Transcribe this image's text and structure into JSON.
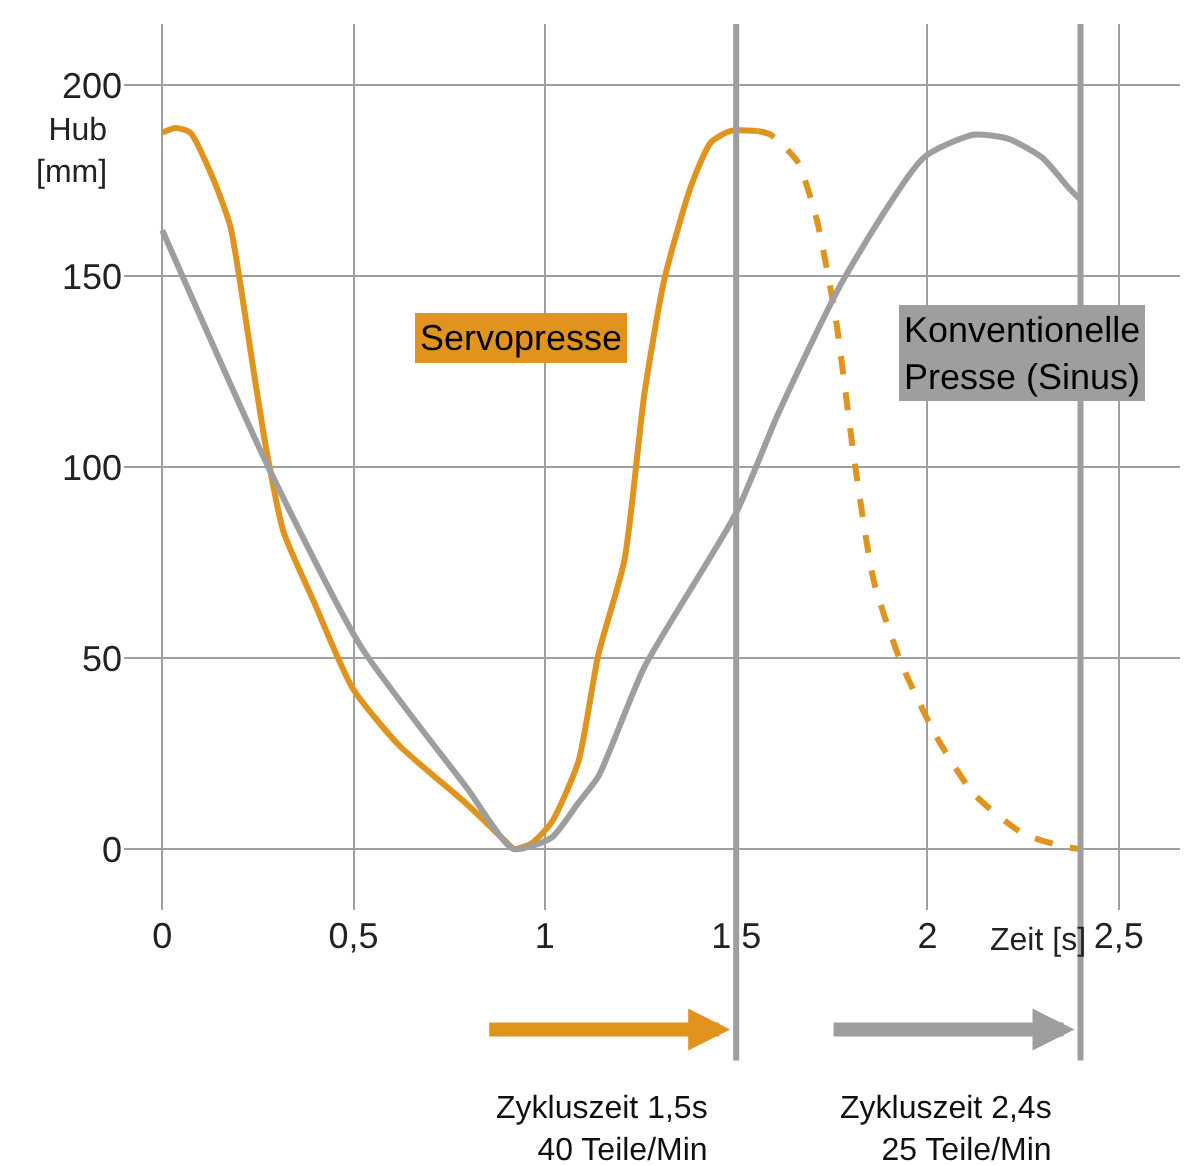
{
  "chart_data": {
    "type": "line",
    "xlabel": "Zeit [s]",
    "ylabel": "Hub\n[mm]",
    "xlim": [
      -0.1,
      2.66
    ],
    "ylim": [
      -16,
      216
    ],
    "xticks": [
      0,
      {
        "value": 0.5,
        "label": "0,5"
      },
      1,
      {
        "value": 1.5,
        "label": "1,5"
      },
      2,
      {
        "value": 2.5,
        "label": "2,5"
      }
    ],
    "yticks": [
      0,
      50,
      100,
      150,
      200
    ],
    "grid": true,
    "series": [
      {
        "color": "#e0941e",
        "line_style": "solid",
        "x": [
          0,
          0.035,
          0.073,
          0.135,
          0.178,
          0.204,
          0.239,
          0.273,
          0.317,
          0.395,
          0.498,
          0.62,
          0.793,
          0.897,
          0.92,
          0.966,
          1.018,
          1.088,
          1.14,
          1.208,
          1.26,
          1.312,
          1.382,
          1.434,
          1.486,
          1.556
        ],
        "values": [
          187.6,
          188.8,
          187.6,
          175,
          163,
          148,
          125,
          104,
          83,
          65,
          42,
          27,
          12,
          2,
          0,
          1.5,
          7,
          23,
          51,
          75.6,
          119,
          149,
          173.6,
          185,
          188,
          188
        ]
      },
      {
        "color": "#e0941e",
        "line_style": "dashed",
        "x": [
          1.556,
          1.59,
          1.66,
          1.71,
          1.76,
          1.81,
          1.86,
          1.93,
          2.02,
          2.12,
          2.25,
          2.36,
          2.4
        ],
        "values": [
          188,
          187,
          180,
          165,
          139,
          101,
          70,
          49,
          30,
          14.5,
          4,
          0.5,
          0
        ]
      },
      {
        "color": "#9e9e9e",
        "line_style": "solid",
        "x": [
          0,
          0.277,
          0.519,
          0.796,
          0.917,
          1.018,
          1.087,
          1.14,
          1.26,
          1.5,
          1.61,
          1.78,
          1.99,
          2.12,
          2.21,
          2.3,
          2.37,
          2.4
        ],
        "values": [
          162,
          100,
          53,
          16,
          0,
          3,
          12,
          19,
          47.6,
          88,
          114,
          149,
          181,
          187,
          186,
          181,
          173,
          170
        ]
      }
    ],
    "ref_lines": [
      {
        "axis": "x",
        "value": 1.5,
        "color": "#9e9e9e"
      },
      {
        "axis": "x",
        "value": 2.4,
        "color": "#9e9e9e"
      }
    ],
    "annotations": [
      "Servopresse",
      "Konventionelle\nPresse (Sinus)",
      "Zykluszeit 1,5s\n40 Teile/Min",
      "Zykluszeit 2,4s\n25 Teile/Min"
    ]
  }
}
